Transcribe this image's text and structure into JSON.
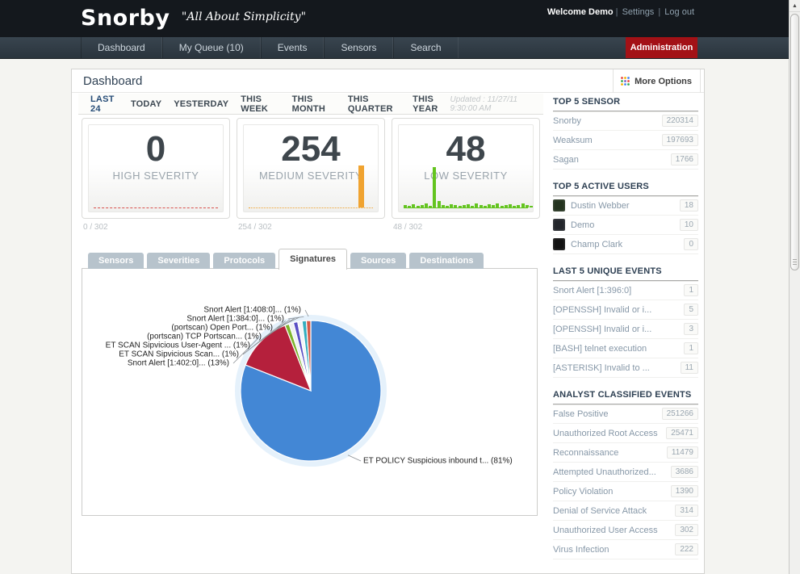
{
  "header": {
    "logo": "Snorby",
    "tagline": "\"All About Simplicity\"",
    "welcome": "Welcome Demo",
    "settings": "Settings",
    "logout": "Log out",
    "divider": "|"
  },
  "nav": {
    "items": [
      "Dashboard",
      "My Queue (10)",
      "Events",
      "Sensors",
      "Search"
    ],
    "admin_label": "Administration",
    "admin_color": "#a31116"
  },
  "page": {
    "title": "Dashboard",
    "more_options_label": "More Options",
    "updated": "Updated : 11/27/11 9:30:00 AM"
  },
  "time_tabs": {
    "active": "LAST 24",
    "items": [
      "LAST 24",
      "TODAY",
      "YESTERDAY",
      "THIS WEEK",
      "THIS MONTH",
      "THIS QUARTER",
      "THIS YEAR"
    ]
  },
  "metrics": [
    {
      "value": "0",
      "label": "HIGH SEVERITY",
      "footer": "0 / 302",
      "accent": "#d9534f",
      "spark_type": "flat"
    },
    {
      "value": "254",
      "label": "MEDIUM SEVERITY",
      "footer": "254 / 302",
      "accent": "#f0a330",
      "spark_type": "single_peak"
    },
    {
      "value": "48",
      "label": "LOW SEVERITY",
      "footer": "48 / 302",
      "accent": "#63c41f",
      "spark_type": "noisy"
    }
  ],
  "chart_tabs": {
    "active": "Signatures",
    "items": [
      "Sensors",
      "Severities",
      "Protocols",
      "Signatures",
      "Sources",
      "Destinations"
    ]
  },
  "chart_data": {
    "type": "pie",
    "title": "Signatures",
    "legend_position": "labels-with-leader-lines",
    "slices": [
      {
        "label": "ET POLICY Suspicious inbound t... (81%)",
        "value": 81,
        "color": "#4387d5"
      },
      {
        "label": "Snort Alert [1:402:0]... (13%)",
        "value": 13,
        "color": "#b5203c"
      },
      {
        "label": "ET SCAN Sipvicious Scan... (1%)",
        "value": 1,
        "color": "#7db32d"
      },
      {
        "label": "ET SCAN Sipvicious User-Agent ... (1%)",
        "value": 1,
        "color": "#eef1f3"
      },
      {
        "label": "(portscan) TCP Portscan... (1%)",
        "value": 1,
        "color": "#5b50c5"
      },
      {
        "label": "(portscan) Open Port... (1%)",
        "value": 1,
        "color": "#f3f5f7"
      },
      {
        "label": "Snort Alert [1:384:0]... (1%)",
        "value": 1,
        "color": "#35aebf"
      },
      {
        "label": "Snort Alert [1:408:0]... (1%)",
        "value": 1,
        "color": "#d65946"
      }
    ]
  },
  "sidebar": {
    "sections": [
      {
        "title": "TOP 5 SENSOR",
        "items": [
          {
            "label": "Snorby",
            "value": "220314"
          },
          {
            "label": "Weaksum",
            "value": "197693"
          },
          {
            "label": "Sagan",
            "value": "1766"
          }
        ]
      },
      {
        "title": "TOP 5 ACTIVE USERS",
        "items": [
          {
            "label": "Dustin Webber",
            "value": "18",
            "avatar": "#24331f"
          },
          {
            "label": "Demo",
            "value": "10",
            "avatar": "#23262b"
          },
          {
            "label": "Champ Clark",
            "value": "0",
            "avatar": "#121212"
          }
        ]
      },
      {
        "title": "LAST 5 UNIQUE EVENTS",
        "items": [
          {
            "label": "Snort Alert [1:396:0]",
            "value": "1"
          },
          {
            "label": "[OPENSSH] Invalid or i...",
            "value": "5"
          },
          {
            "label": "[OPENSSH] Invalid or i...",
            "value": "3"
          },
          {
            "label": "[BASH] telnet execution",
            "value": "1"
          },
          {
            "label": "[ASTERISK] Invalid to ...",
            "value": "11"
          }
        ]
      },
      {
        "title": "ANALYST CLASSIFIED EVENTS",
        "items": [
          {
            "label": "False Positive",
            "value": "251266"
          },
          {
            "label": "Unauthorized Root Access",
            "value": "25471"
          },
          {
            "label": "Reconnaissance",
            "value": "11479"
          },
          {
            "label": "Attempted Unauthorized...",
            "value": "3686"
          },
          {
            "label": "Policy Violation",
            "value": "1390"
          },
          {
            "label": "Denial of Service Attack",
            "value": "314"
          },
          {
            "label": "Unauthorized User Access",
            "value": "302"
          },
          {
            "label": "Virus Infection",
            "value": "222"
          }
        ]
      }
    ]
  },
  "scrollbar": {
    "up_glyph": "▲"
  }
}
